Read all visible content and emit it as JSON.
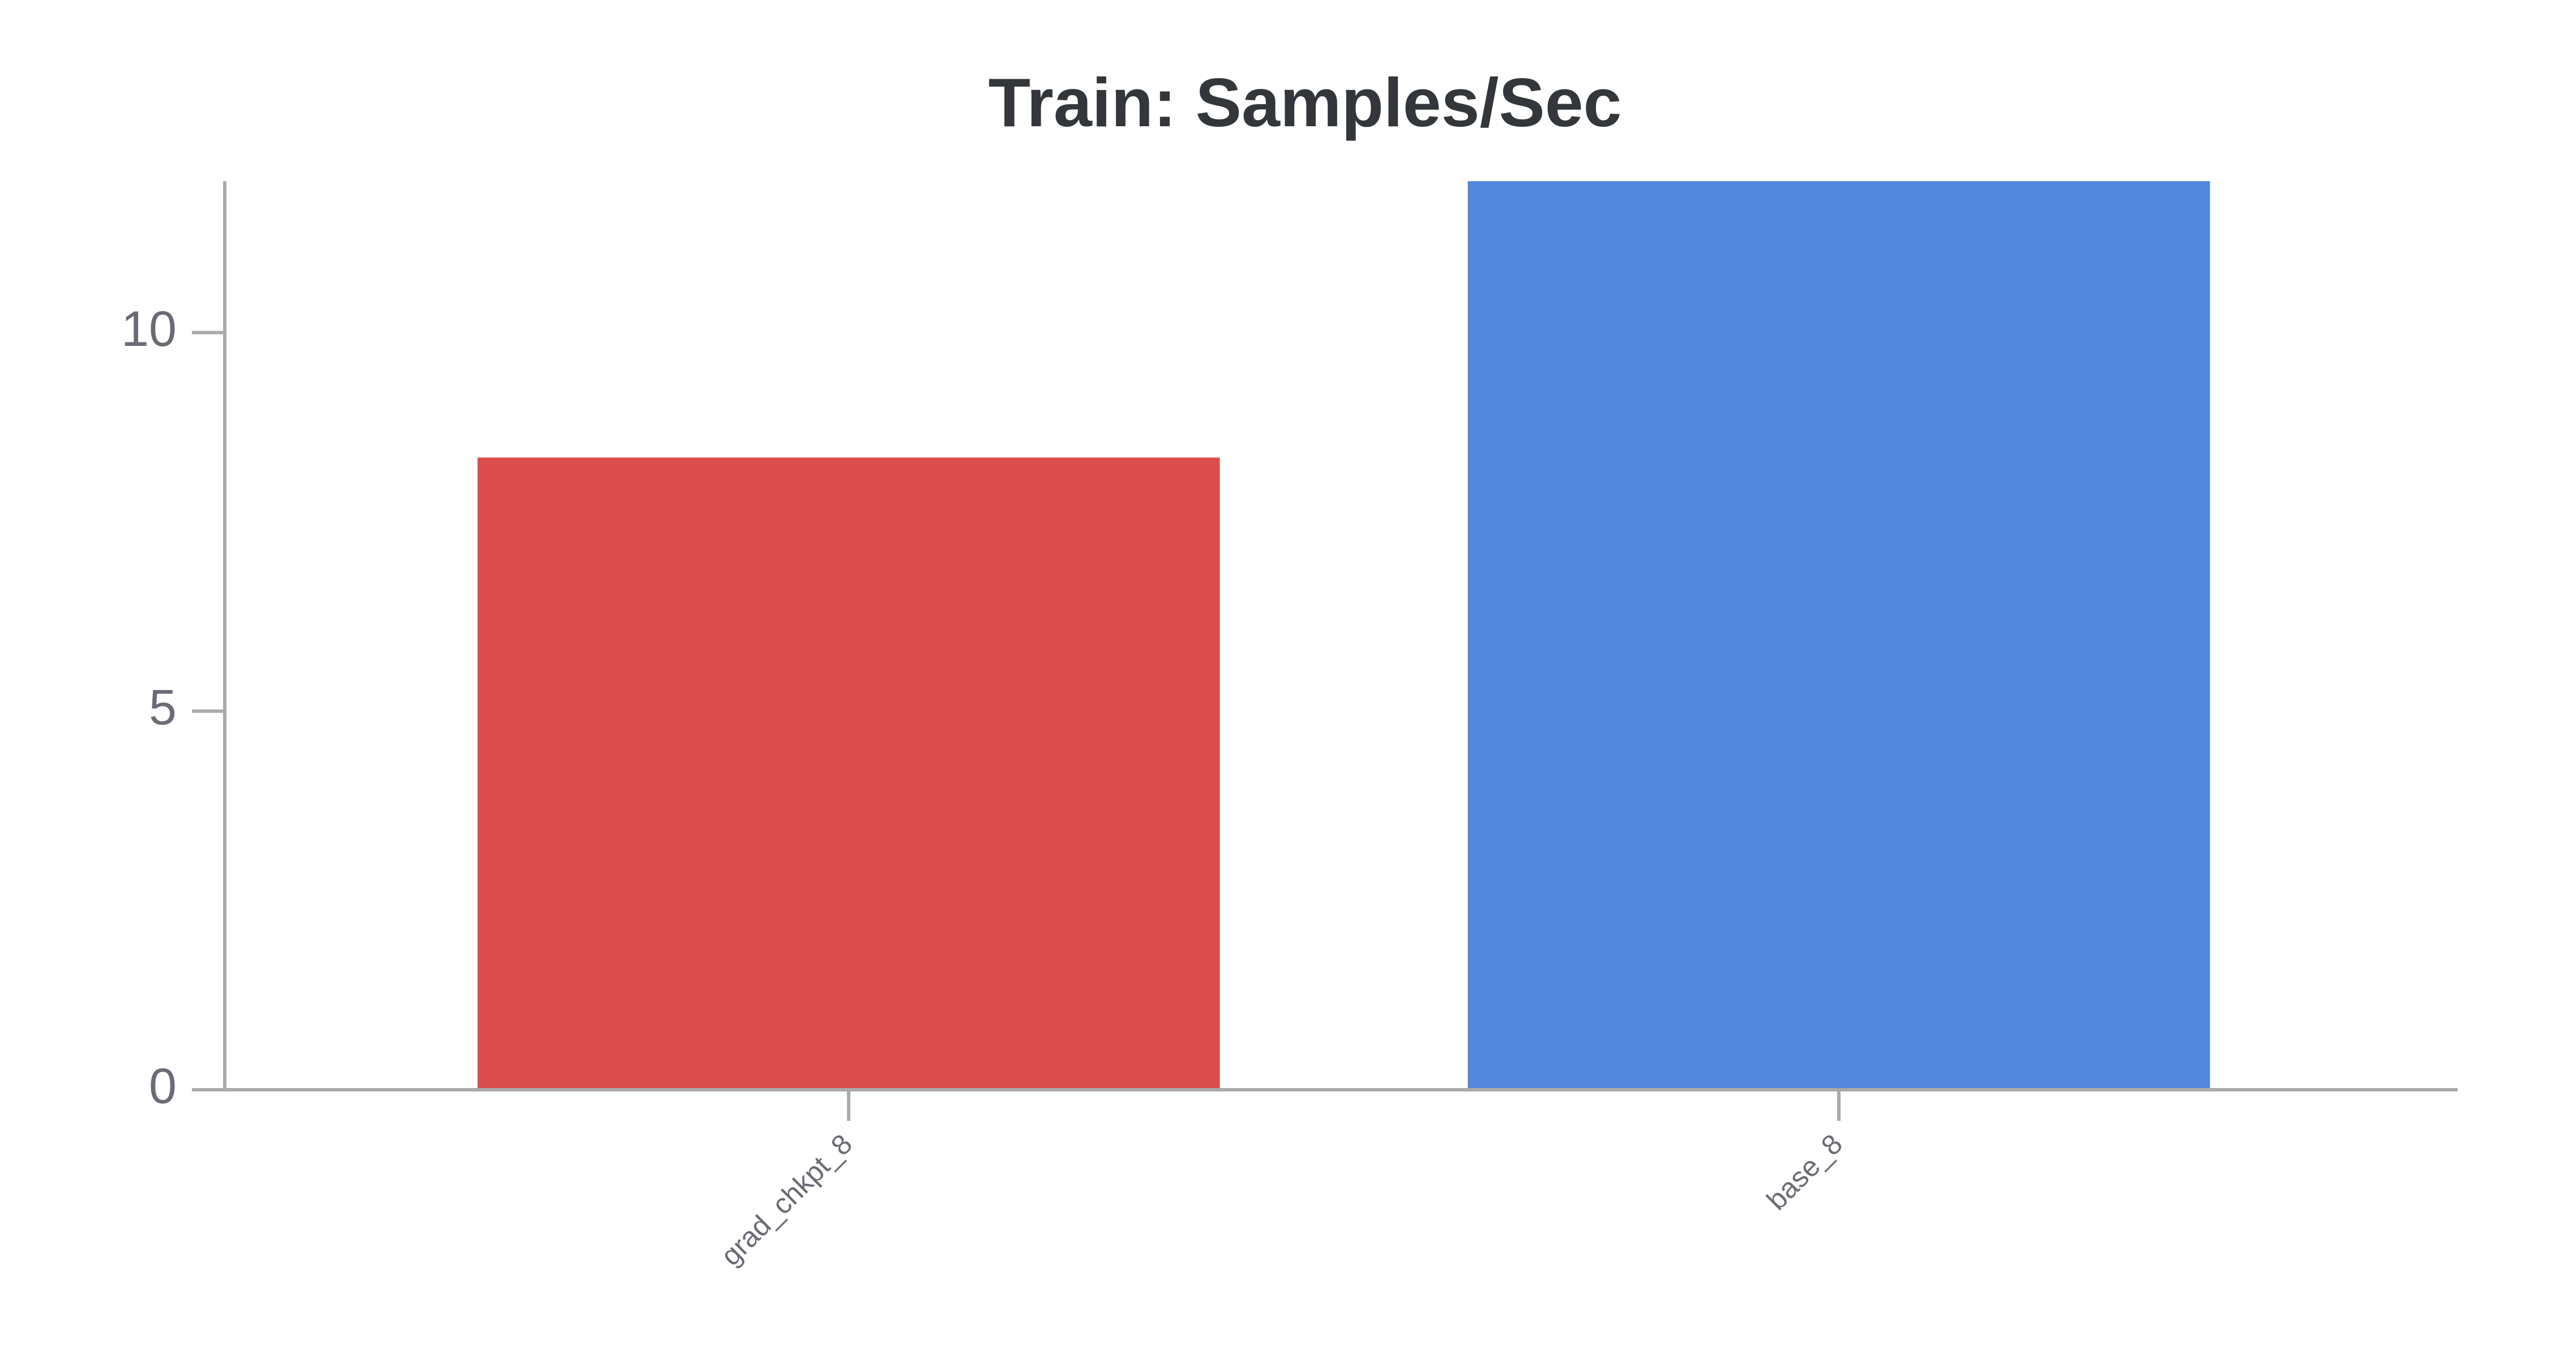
{
  "chart_data": {
    "type": "bar",
    "title": "Train: Samples/Sec",
    "categories": [
      "grad_chkpt_8",
      "base_8"
    ],
    "values": [
      8.35,
      12.0
    ],
    "colors": [
      "#db4d4d",
      "#5387dd"
    ],
    "ylim": [
      0,
      12
    ],
    "yticks": [
      0,
      5,
      10
    ],
    "grid": false
  }
}
